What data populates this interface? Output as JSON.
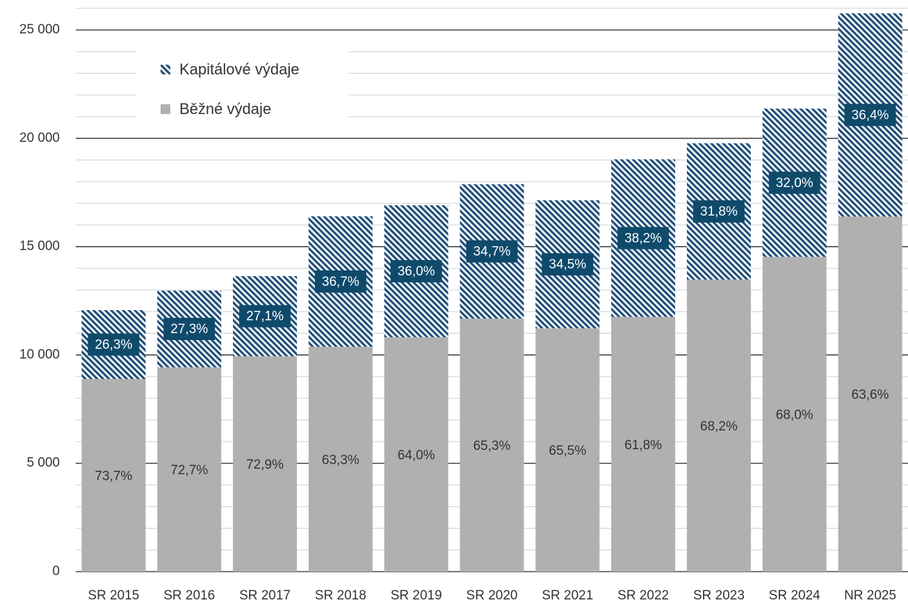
{
  "chart_data": {
    "type": "stacked_bar",
    "categories": [
      "SR 2015",
      "SR 2016",
      "SR 2017",
      "SR 2018",
      "SR 2019",
      "SR 2020",
      "SR 2021",
      "SR 2022",
      "SR 2023",
      "SR 2024",
      "NR 2025"
    ],
    "series": [
      {
        "name": "Běžné výdaje",
        "color": "#b0b0b0",
        "pattern": "solid",
        "values": [
          8890,
          9430,
          9940,
          10380,
          10820,
          11680,
          11230,
          11760,
          13480,
          14530,
          16390
        ],
        "data_labels": [
          "73,7%",
          "72,7%",
          "72,9%",
          "63,3%",
          "64,0%",
          "65,3%",
          "65,5%",
          "61,8%",
          "68,2%",
          "68,0%",
          "63,6%"
        ]
      },
      {
        "name": "Kapitálové výdaje",
        "color": "#1f4e79",
        "pattern": "hatch",
        "values": [
          3180,
          3540,
          3700,
          6020,
          6090,
          6200,
          5910,
          7270,
          6290,
          6840,
          9380
        ],
        "data_labels": [
          "26,3%",
          "27,3%",
          "27,1%",
          "36,7%",
          "36,0%",
          "34,7%",
          "34,5%",
          "38,2%",
          "31,8%",
          "32,0%",
          "36,4%"
        ]
      }
    ],
    "ylim": [
      0,
      26000
    ],
    "yticks": [
      0,
      {
        "value": 5000,
        "label": "5 000"
      },
      {
        "value": 10000,
        "label": "10 000"
      },
      {
        "value": 15000,
        "label": "15 000"
      },
      {
        "value": 20000,
        "label": "20 000"
      },
      {
        "value": 25000,
        "label": "25 000"
      }
    ],
    "minor_yticks": [
      1000,
      2000,
      3000,
      4000,
      6000,
      7000,
      8000,
      9000,
      11000,
      12000,
      13000,
      14000,
      16000,
      17000,
      18000,
      19000,
      21000,
      22000,
      23000,
      24000,
      26000
    ],
    "grid": true,
    "legend": "upper left"
  }
}
